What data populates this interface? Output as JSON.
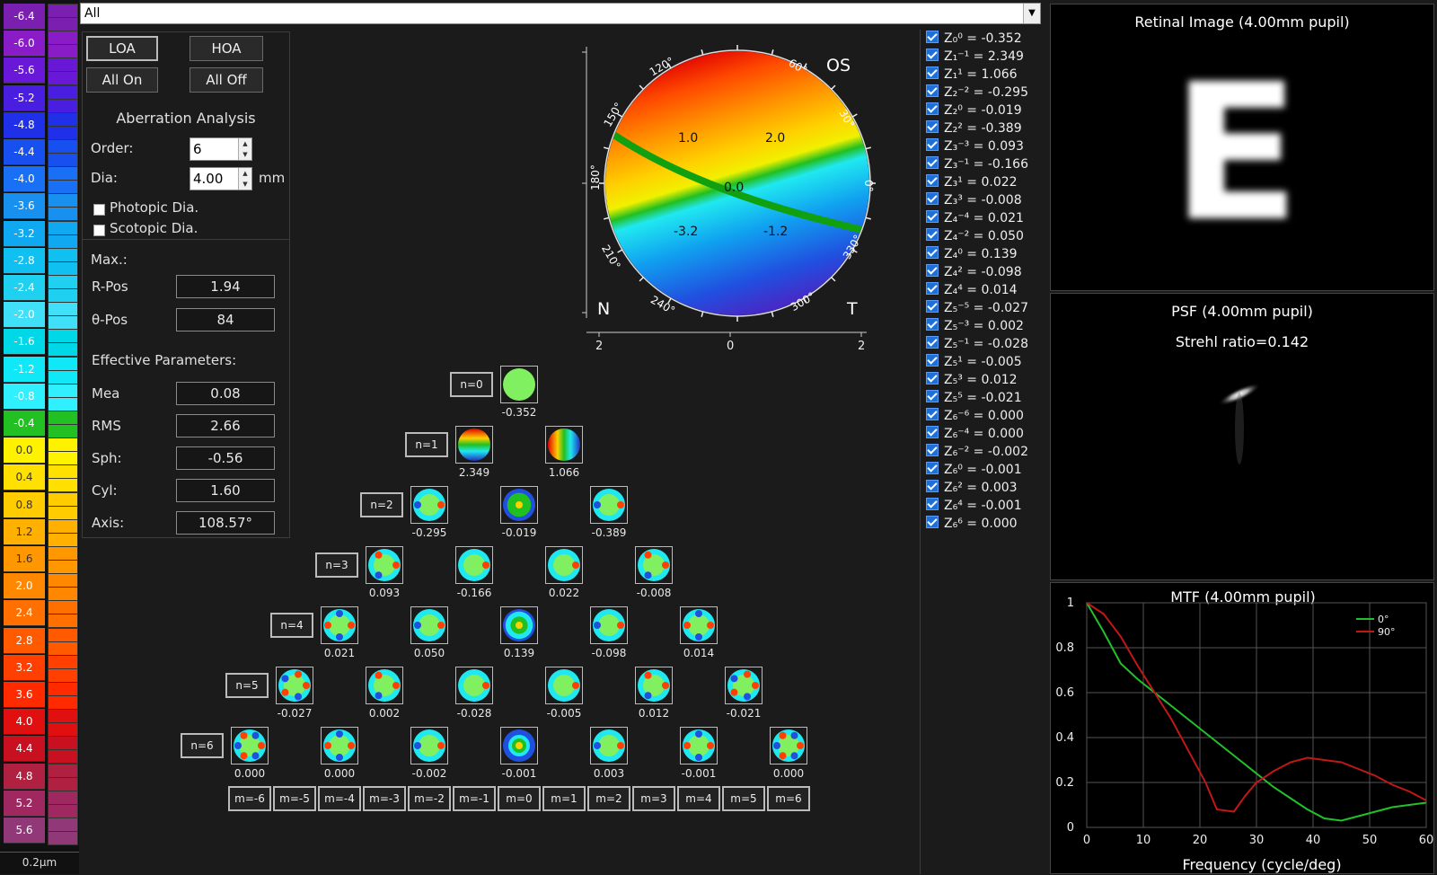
{
  "scale": {
    "labels": [
      "-6.4",
      "-6.0",
      "-5.6",
      "-5.2",
      "-4.8",
      "-4.4",
      "-4.0",
      "-3.6",
      "-3.2",
      "-2.8",
      "-2.4",
      "-2.0",
      "-1.6",
      "-1.2",
      "-0.8",
      "-0.4",
      "0.0",
      "0.4",
      "0.8",
      "1.2",
      "1.6",
      "2.0",
      "2.4",
      "2.8",
      "3.2",
      "3.6",
      "4.0",
      "4.4",
      "4.8",
      "5.2",
      "5.6"
    ],
    "label_colors": [
      "#7a1fb0",
      "#8a1cc8",
      "#6a18d8",
      "#4a1ee0",
      "#2030e8",
      "#1850f0",
      "#1a70f4",
      "#1890f0",
      "#10a8f0",
      "#10c0f0",
      "#20d0f0",
      "#40e0f8",
      "#00d8e8",
      "#10e8f8",
      "#30f0ff",
      "#22c022",
      "#fff200",
      "#ffe000",
      "#ffcc00",
      "#ffb000",
      "#ff9800",
      "#ff8800",
      "#ff7000",
      "#ff5a00",
      "#ff4000",
      "#ff2a00",
      "#e01010",
      "#c81020",
      "#b02040",
      "#a02860",
      "#903878"
    ],
    "unit": "0.2μm"
  },
  "selector": {
    "value": "All"
  },
  "panel": {
    "loa": "LOA",
    "hoa": "HOA",
    "all_on": "All On",
    "all_off": "All Off",
    "section_title": "Aberration Analysis",
    "order_label": "Order:",
    "order_value": "6",
    "dia_label": "Dia:",
    "dia_value": "4.00",
    "dia_unit": "mm",
    "photopic": "Photopic Dia.",
    "scotopic": "Scotopic Dia.",
    "max_label": "Max.:",
    "rpos_label": "R-Pos",
    "rpos_value": "1.94",
    "thetapos_label": "θ-Pos",
    "thetapos_value": "84",
    "eff_label": "Effective Parameters:",
    "mea_label": "Mea",
    "mea_value": "0.08",
    "rms_label": "RMS",
    "rms_value": "2.66",
    "sph_label": "Sph:",
    "sph_value": "-0.56",
    "cyl_label": "Cyl:",
    "cyl_value": "1.60",
    "axis_label": "Axis:",
    "axis_value": "108.57°"
  },
  "map": {
    "eye": "OS",
    "nasal": "N",
    "temporal": "T",
    "angles": [
      "120°",
      "60°",
      "150°",
      "30°",
      "180°",
      "0°",
      "210°",
      "330°",
      "240°",
      "300°"
    ],
    "contour_labels": [
      "1.0",
      "2.0",
      "0.0",
      "-3.2",
      "-1.2"
    ],
    "axis_ticks_y": [
      "2",
      "0",
      "2"
    ],
    "axis_ticks_x": [
      "2",
      "0",
      "2"
    ]
  },
  "pyramid": {
    "rows": [
      {
        "n": "n=0",
        "values": [
          "-0.352"
        ]
      },
      {
        "n": "n=1",
        "values": [
          "2.349",
          "1.066"
        ]
      },
      {
        "n": "n=2",
        "values": [
          "-0.295",
          "-0.019",
          "-0.389"
        ]
      },
      {
        "n": "n=3",
        "values": [
          "0.093",
          "-0.166",
          "0.022",
          "-0.008"
        ]
      },
      {
        "n": "n=4",
        "values": [
          "0.021",
          "0.050",
          "0.139",
          "-0.098",
          "0.014"
        ]
      },
      {
        "n": "n=5",
        "values": [
          "-0.027",
          "0.002",
          "-0.028",
          "-0.005",
          "0.012",
          "-0.021"
        ]
      },
      {
        "n": "n=6",
        "values": [
          "0.000",
          "0.000",
          "-0.002",
          "-0.001",
          "0.003",
          "-0.001",
          "0.000"
        ]
      }
    ],
    "m_labels": [
      "m=-6",
      "m=-5",
      "m=-4",
      "m=-3",
      "m=-2",
      "m=-1",
      "m=0",
      "m=1",
      "m=2",
      "m=3",
      "m=4",
      "m=5",
      "m=6"
    ]
  },
  "coefficients": [
    {
      "name": "Z₀⁰",
      "value": "-0.352"
    },
    {
      "name": "Z₁⁻¹",
      "value": "2.349"
    },
    {
      "name": "Z₁¹",
      "value": "1.066"
    },
    {
      "name": "Z₂⁻²",
      "value": "-0.295"
    },
    {
      "name": "Z₂⁰",
      "value": "-0.019"
    },
    {
      "name": "Z₂²",
      "value": "-0.389"
    },
    {
      "name": "Z₃⁻³",
      "value": "0.093"
    },
    {
      "name": "Z₃⁻¹",
      "value": "-0.166"
    },
    {
      "name": "Z₃¹",
      "value": "0.022"
    },
    {
      "name": "Z₃³",
      "value": "-0.008"
    },
    {
      "name": "Z₄⁻⁴",
      "value": "0.021"
    },
    {
      "name": "Z₄⁻²",
      "value": "0.050"
    },
    {
      "name": "Z₄⁰",
      "value": "0.139"
    },
    {
      "name": "Z₄²",
      "value": "-0.098"
    },
    {
      "name": "Z₄⁴",
      "value": "0.014"
    },
    {
      "name": "Z₅⁻⁵",
      "value": "-0.027"
    },
    {
      "name": "Z₅⁻³",
      "value": "0.002"
    },
    {
      "name": "Z₅⁻¹",
      "value": "-0.028"
    },
    {
      "name": "Z₅¹",
      "value": "-0.005"
    },
    {
      "name": "Z₅³",
      "value": "0.012"
    },
    {
      "name": "Z₅⁵",
      "value": "-0.021"
    },
    {
      "name": "Z₆⁻⁶",
      "value": "0.000"
    },
    {
      "name": "Z₆⁻⁴",
      "value": "0.000"
    },
    {
      "name": "Z₆⁻²",
      "value": "-0.002"
    },
    {
      "name": "Z₆⁰",
      "value": "-0.001"
    },
    {
      "name": "Z₆²",
      "value": "0.003"
    },
    {
      "name": "Z₆⁴",
      "value": "-0.001"
    },
    {
      "name": "Z₆⁶",
      "value": "0.000"
    }
  ],
  "retinal": {
    "title": "Retinal Image (4.00mm pupil)",
    "letter": "E"
  },
  "psf": {
    "title": "PSF (4.00mm pupil)",
    "strehl": "Strehl ratio=0.142"
  },
  "chart_data": {
    "type": "line",
    "title": "MTF (4.00mm pupil)",
    "xlabel": "Frequency (cycle/deg)",
    "ylabel": "",
    "xlim": [
      0,
      60
    ],
    "ylim": [
      0,
      1
    ],
    "xticks": [
      "0",
      "10",
      "20",
      "30",
      "40",
      "50",
      "60"
    ],
    "yticks": [
      "0",
      "0.2",
      "0.4",
      "0.6",
      "0.8",
      "1"
    ],
    "grid": true,
    "legend_position": "top-right",
    "series": [
      {
        "name": "0°",
        "color": "#22c02a",
        "x": [
          0,
          3,
          6,
          9,
          12,
          15,
          18,
          21,
          24,
          27,
          30,
          33,
          36,
          39,
          42,
          45,
          48,
          51,
          54,
          57,
          60
        ],
        "y": [
          1.0,
          0.87,
          0.73,
          0.66,
          0.6,
          0.54,
          0.48,
          0.42,
          0.36,
          0.3,
          0.24,
          0.18,
          0.13,
          0.08,
          0.04,
          0.03,
          0.05,
          0.07,
          0.09,
          0.1,
          0.11
        ]
      },
      {
        "name": "90°",
        "color": "#c01818",
        "x": [
          0,
          3,
          6,
          9,
          12,
          15,
          18,
          21,
          23,
          26,
          28,
          30,
          33,
          36,
          39,
          42,
          45,
          48,
          51,
          54,
          57,
          60
        ],
        "y": [
          1.0,
          0.95,
          0.85,
          0.72,
          0.6,
          0.48,
          0.34,
          0.2,
          0.08,
          0.07,
          0.14,
          0.2,
          0.25,
          0.29,
          0.31,
          0.3,
          0.29,
          0.26,
          0.23,
          0.19,
          0.16,
          0.12
        ]
      }
    ]
  }
}
